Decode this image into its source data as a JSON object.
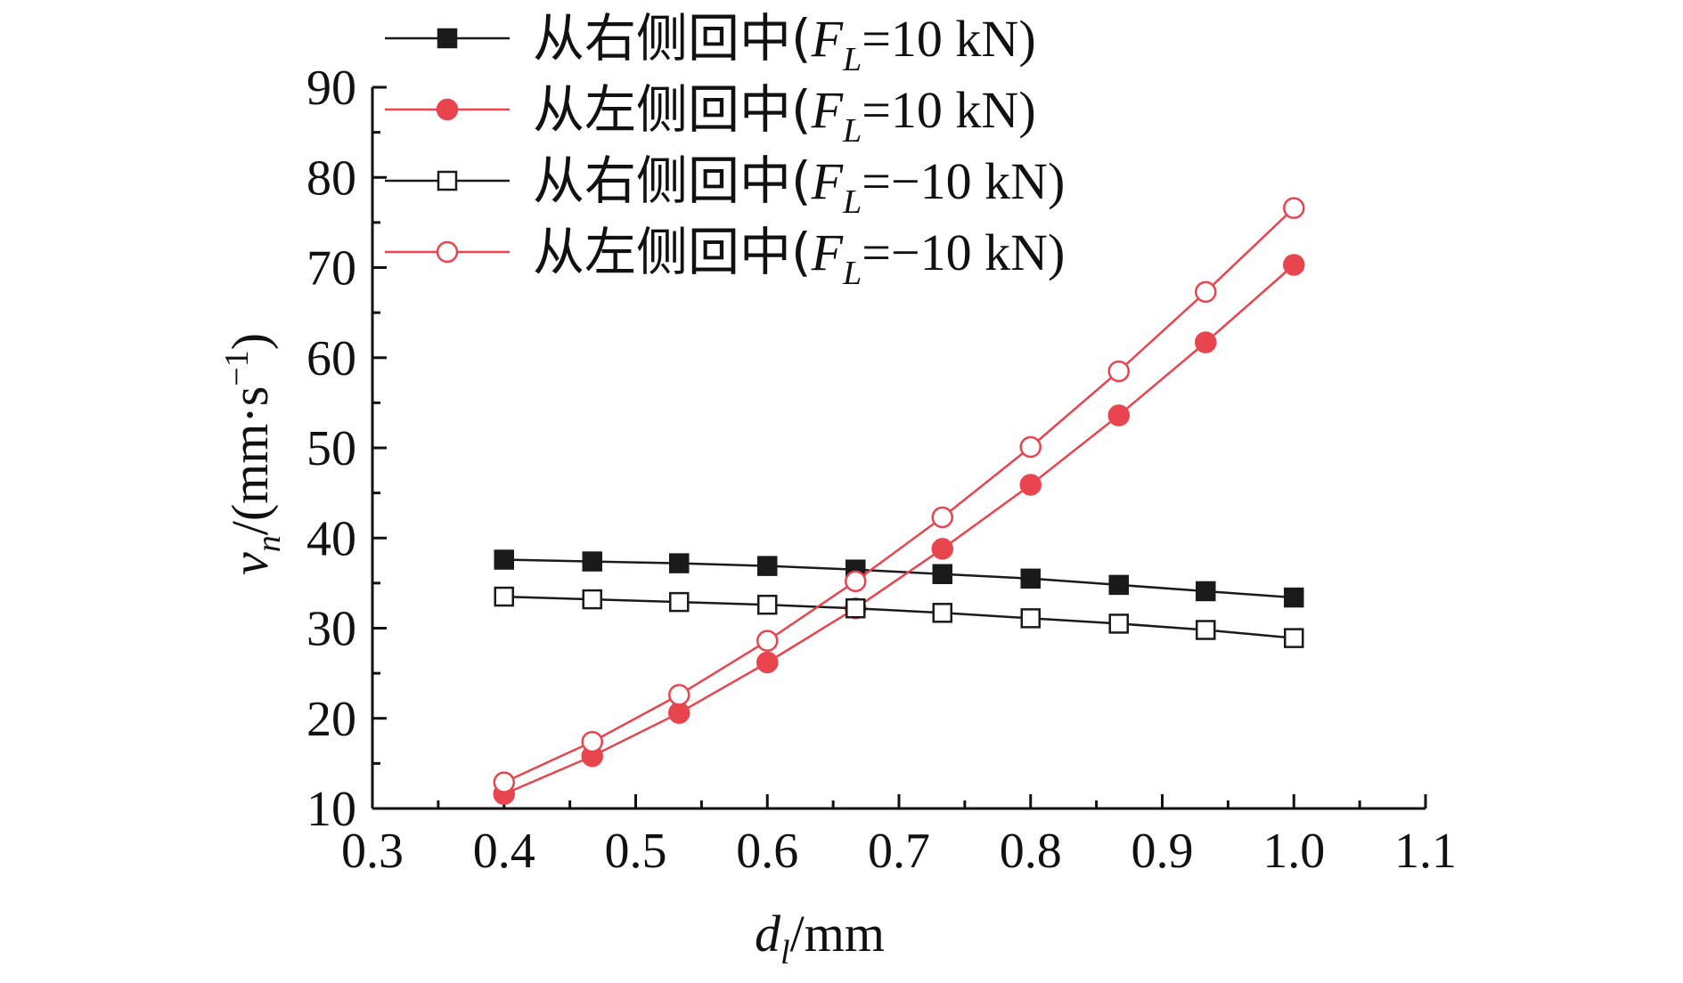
{
  "chart_data": {
    "type": "line",
    "title": "",
    "xlabel": {
      "main": "d",
      "sub": "l",
      "suffix": "/mm"
    },
    "ylabel": {
      "main": "v",
      "sub": "n",
      "suffix": "/(mm·s",
      "sup": "−1",
      "end": ")"
    },
    "xlim": [
      0.3,
      1.1
    ],
    "ylim": [
      10,
      90
    ],
    "xticks": [
      "0.3",
      "0.4",
      "0.5",
      "0.6",
      "0.7",
      "0.8",
      "0.9",
      "1.0",
      "1.1"
    ],
    "yticks": [
      "10",
      "20",
      "30",
      "40",
      "50",
      "60",
      "70",
      "80",
      "90"
    ],
    "grid": false,
    "legend_position": "top-left",
    "x": [
      0.4,
      0.467,
      0.533,
      0.6,
      0.667,
      0.733,
      0.8,
      0.867,
      0.933,
      1.0
    ],
    "series": [
      {
        "label_prefix": "从右侧回中(",
        "label_var": "F",
        "label_sub": "L",
        "label_suffix": "=10 kN)",
        "color": "#1a1a1a",
        "marker": "square-filled",
        "values": [
          37.6,
          37.4,
          37.2,
          36.9,
          36.5,
          36.0,
          35.5,
          34.8,
          34.1,
          33.4
        ]
      },
      {
        "label_prefix": "从左侧回中(",
        "label_var": "F",
        "label_sub": "L",
        "label_suffix": "=10 kN)",
        "color": "#e8454f",
        "marker": "circle-filled",
        "values": [
          11.6,
          15.8,
          20.6,
          26.2,
          32.2,
          38.8,
          45.9,
          53.6,
          61.7,
          70.3
        ]
      },
      {
        "label_prefix": "从右侧回中(",
        "label_var": "F",
        "label_sub": "L",
        "label_suffix": "=−10 kN)",
        "color": "#1a1a1a",
        "marker": "square-open",
        "values": [
          33.5,
          33.2,
          32.9,
          32.6,
          32.2,
          31.7,
          31.1,
          30.5,
          29.8,
          28.9
        ]
      },
      {
        "label_prefix": "从左侧回中(",
        "label_var": "F",
        "label_sub": "L",
        "label_suffix": "=−10 kN)",
        "color": "#e8454f",
        "marker": "circle-open",
        "values": [
          12.9,
          17.4,
          22.6,
          28.6,
          35.2,
          42.3,
          50.1,
          58.5,
          67.3,
          76.6
        ]
      }
    ]
  }
}
